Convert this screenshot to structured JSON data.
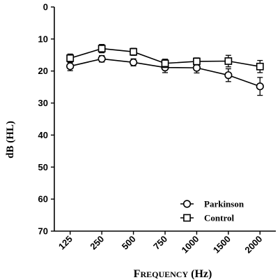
{
  "chart_data": {
    "type": "line",
    "xlabel": "Frequency (Hz)",
    "xlabel_lead": "F",
    "xlabel_rest": "REQUENCY",
    "xlabel_unit": " (Hz)",
    "ylabel": "dB (HL)",
    "categories": [
      "125",
      "250",
      "500",
      "750",
      "1000",
      "1500",
      "2000"
    ],
    "ylim": [
      0,
      70
    ],
    "y_ticks": [
      "0",
      "10",
      "20",
      "30",
      "40",
      "50",
      "60",
      "70"
    ],
    "y_inverted": true,
    "grid": false,
    "legend_position": "bottom-right",
    "series": [
      {
        "name": "Parkinson",
        "marker": "circle",
        "values": [
          18.5,
          16.2,
          17.3,
          18.9,
          19.0,
          21.3,
          24.8
        ],
        "errors": [
          1.4,
          1.0,
          1.1,
          1.6,
          1.6,
          2.0,
          2.8
        ]
      },
      {
        "name": "Control",
        "marker": "square",
        "values": [
          16.0,
          13.0,
          14.0,
          17.6,
          17.0,
          16.9,
          18.6
        ],
        "errors": [
          1.3,
          1.3,
          1.1,
          1.3,
          1.1,
          1.8,
          1.9
        ]
      }
    ]
  }
}
